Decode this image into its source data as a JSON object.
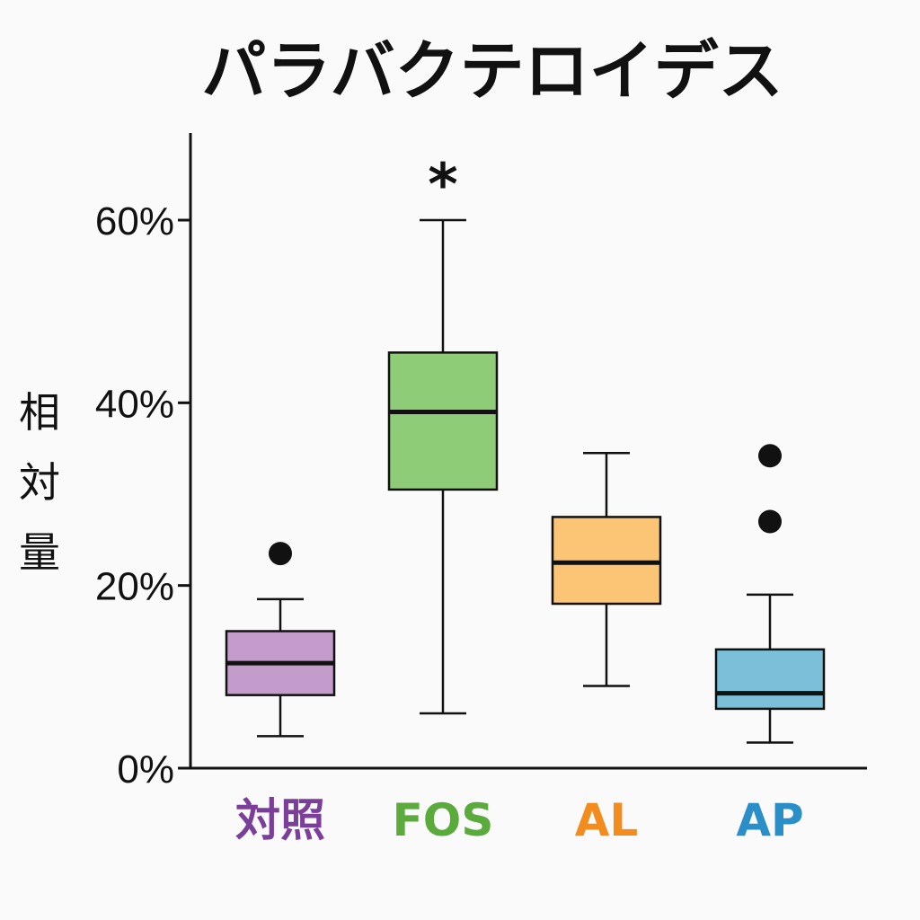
{
  "chart_data": {
    "type": "box",
    "title": "パラバクテロイデス",
    "ylabel": "相対量",
    "xlabel": "",
    "ylim": [
      0,
      70
    ],
    "yticks": [
      0,
      20,
      40,
      60
    ],
    "ytick_labels": [
      "0%",
      "20%",
      "40%",
      "60%"
    ],
    "grid": false,
    "legend": "none",
    "categories": [
      "対照",
      "FOS",
      "AL",
      "AP"
    ],
    "colors": {
      "対照": {
        "fill": "#c39ccc",
        "label": "#7b3f99"
      },
      "FOS": {
        "fill": "#8fcc78",
        "label": "#5aaa3c"
      },
      "AL": {
        "fill": "#fcc576",
        "label": "#f28c1e"
      },
      "AP": {
        "fill": "#7cbfd8",
        "label": "#2a8fc9"
      }
    },
    "boxes": [
      {
        "category": "対照",
        "whisker_low": 3.5,
        "q1": 8,
        "median": 11.5,
        "q3": 15,
        "whisker_high": 18.5,
        "outliers": [
          23.5
        ]
      },
      {
        "category": "FOS",
        "whisker_low": 6,
        "q1": 30.5,
        "median": 39,
        "q3": 45.5,
        "whisker_high": 60,
        "outliers": []
      },
      {
        "category": "AL",
        "whisker_low": 9,
        "q1": 18,
        "median": 22.5,
        "q3": 27.5,
        "whisker_high": 34.5,
        "outliers": []
      },
      {
        "category": "AP",
        "whisker_low": 2.8,
        "q1": 6.5,
        "median": 8.2,
        "q3": 13,
        "whisker_high": 19,
        "outliers": [
          27,
          34.2
        ]
      }
    ],
    "annotations": [
      {
        "text": "*",
        "category": "FOS",
        "y": 64.5
      }
    ]
  }
}
